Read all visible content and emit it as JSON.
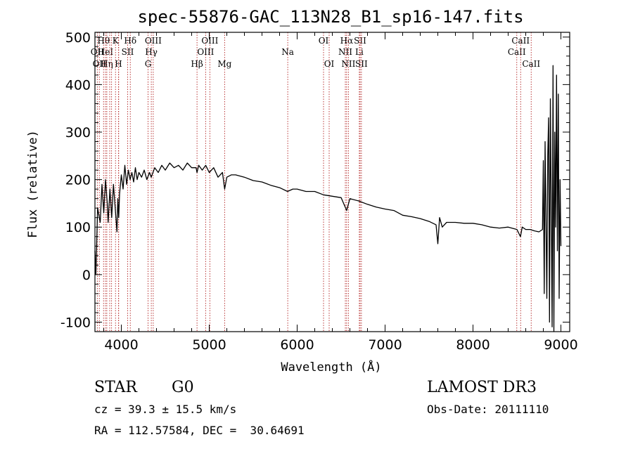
{
  "chart_data": {
    "type": "line",
    "title": "spec-55876-GAC_113N28_B1_sp16-147.fits",
    "xlabel": "Wavelength (Å)",
    "ylabel": "Flux (relative)",
    "xlim": [
      3700,
      9100
    ],
    "ylim": [
      -120,
      510
    ],
    "xticks": [
      4000,
      5000,
      6000,
      7000,
      8000,
      9000
    ],
    "yticks": [
      -100,
      0,
      100,
      200,
      300,
      400,
      500
    ],
    "series": [
      {
        "name": "flux",
        "x": [
          3700,
          3710,
          3730,
          3760,
          3780,
          3800,
          3820,
          3840,
          3850,
          3870,
          3890,
          3910,
          3930,
          3950,
          3960,
          3970,
          3980,
          4000,
          4020,
          4040,
          4060,
          4080,
          4100,
          4120,
          4140,
          4160,
          4180,
          4200,
          4230,
          4260,
          4290,
          4320,
          4340,
          4380,
          4420,
          4460,
          4500,
          4550,
          4600,
          4650,
          4700,
          4750,
          4800,
          4850,
          4861,
          4880,
          4920,
          4960,
          5000,
          5050,
          5100,
          5150,
          5175,
          5200,
          5250,
          5300,
          5400,
          5500,
          5600,
          5700,
          5800,
          5890,
          5950,
          6000,
          6100,
          6200,
          6300,
          6400,
          6500,
          6563,
          6600,
          6700,
          6800,
          6900,
          7000,
          7100,
          7200,
          7300,
          7400,
          7500,
          7580,
          7600,
          7620,
          7650,
          7700,
          7800,
          7900,
          8000,
          8100,
          8200,
          8300,
          8400,
          8500,
          8540,
          8560,
          8600,
          8650,
          8700,
          8750,
          8790,
          8800,
          8810,
          8820,
          8830,
          8840,
          8850,
          8860,
          8870,
          8880,
          8890,
          8900,
          8910,
          8920,
          8930,
          8940,
          8950,
          8960,
          8970,
          8980,
          8990,
          9000
        ],
        "y": [
          50,
          0,
          140,
          110,
          190,
          130,
          200,
          150,
          110,
          180,
          120,
          190,
          140,
          90,
          160,
          120,
          170,
          210,
          180,
          230,
          190,
          220,
          200,
          215,
          195,
          225,
          200,
          215,
          205,
          220,
          200,
          215,
          205,
          225,
          215,
          230,
          220,
          235,
          225,
          230,
          220,
          235,
          225,
          225,
          215,
          230,
          220,
          230,
          215,
          225,
          205,
          215,
          180,
          205,
          210,
          210,
          205,
          198,
          195,
          188,
          183,
          175,
          180,
          180,
          175,
          175,
          168,
          165,
          162,
          135,
          160,
          155,
          148,
          142,
          138,
          135,
          125,
          122,
          118,
          112,
          105,
          65,
          120,
          100,
          110,
          110,
          108,
          108,
          105,
          100,
          98,
          100,
          95,
          80,
          100,
          95,
          95,
          92,
          90,
          95,
          240,
          -40,
          280,
          110,
          -50,
          250,
          330,
          -100,
          370,
          140,
          -110,
          440,
          -120,
          300,
          100,
          420,
          50,
          380,
          -50,
          200,
          60
        ]
      }
    ],
    "spectral_lines": [
      {
        "wavelength": 3727,
        "label": "OII",
        "row": 2
      },
      {
        "wavelength": 3750,
        "label": "OII",
        "row": 3
      },
      {
        "wavelength": 3798,
        "label": "Hθ",
        "row": 1
      },
      {
        "wavelength": 3820,
        "label": "HeI",
        "row": 2
      },
      {
        "wavelength": 3835,
        "label": "Hη",
        "row": 3
      },
      {
        "wavelength": 3868,
        "label": "",
        "row": 0
      },
      {
        "wavelength": 3889,
        "label": "",
        "row": 0
      },
      {
        "wavelength": 3934,
        "label": "K",
        "row": 1
      },
      {
        "wavelength": 3968,
        "label": "H",
        "row": 3
      },
      {
        "wavelength": 3970,
        "label": "",
        "row": 0
      },
      {
        "wavelength": 4072,
        "label": "SII",
        "row": 2
      },
      {
        "wavelength": 4102,
        "label": "Hδ",
        "row": 1
      },
      {
        "wavelength": 4304,
        "label": "G",
        "row": 3
      },
      {
        "wavelength": 4341,
        "label": "Hγ",
        "row": 2
      },
      {
        "wavelength": 4363,
        "label": "OIII",
        "row": 1
      },
      {
        "wavelength": 4861,
        "label": "Hβ",
        "row": 3
      },
      {
        "wavelength": 4959,
        "label": "OIII",
        "row": 2
      },
      {
        "wavelength": 5007,
        "label": "OIII",
        "row": 1
      },
      {
        "wavelength": 5175,
        "label": "Mg",
        "row": 3
      },
      {
        "wavelength": 5893,
        "label": "Na",
        "row": 2
      },
      {
        "wavelength": 6300,
        "label": "OI",
        "row": 1
      },
      {
        "wavelength": 6364,
        "label": "OI",
        "row": 3
      },
      {
        "wavelength": 6548,
        "label": "NII",
        "row": 2
      },
      {
        "wavelength": 6563,
        "label": "Hα",
        "row": 1
      },
      {
        "wavelength": 6583,
        "label": "NII",
        "row": 3
      },
      {
        "wavelength": 6707,
        "label": "Li",
        "row": 2
      },
      {
        "wavelength": 6716,
        "label": "SII",
        "row": 1
      },
      {
        "wavelength": 6731,
        "label": "SII",
        "row": 3
      },
      {
        "wavelength": 8498,
        "label": "CaII",
        "row": 2
      },
      {
        "wavelength": 8542,
        "label": "CaII",
        "row": 1
      },
      {
        "wavelength": 8662,
        "label": "CaII",
        "row": 3
      }
    ],
    "line_color": "#000000",
    "marker_color": "#b22222"
  },
  "info": {
    "object_class": "STAR",
    "subclass": "G0",
    "survey": "LAMOST DR3",
    "redshift": "cz = 39.3 ± 15.5 km/s",
    "obs_date": "Obs-Date: 20111110",
    "coords": "RA = 112.57584, DEC =  30.64691"
  }
}
